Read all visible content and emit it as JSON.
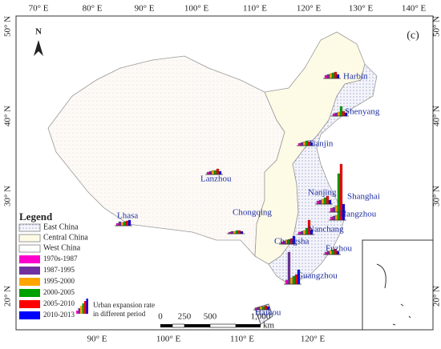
{
  "map": {
    "panel": "(c)",
    "north": "N",
    "lon_top": [
      "70° E",
      "80° E",
      "90° E",
      "100° E",
      "110° E",
      "120° E",
      "130° E",
      "140° E"
    ],
    "lon_bottom": [
      "90° E",
      "100° E",
      "110° E",
      "120° E"
    ],
    "lat_left": [
      "50° N",
      "40° N",
      "30° N",
      "20° N"
    ],
    "lat_right": [
      "50° N",
      "40° N",
      "30° N",
      "20° N"
    ],
    "legend": {
      "title": "Legend",
      "regions": [
        "East China",
        "Central China",
        "West China"
      ],
      "periods": [
        {
          "label": "1970s-1987",
          "color": "#ff00cc"
        },
        {
          "label": "1987-1995",
          "color": "#7030a0"
        },
        {
          "label": "1995-2000",
          "color": "#ffa500"
        },
        {
          "label": "2000-2005",
          "color": "#00a000"
        },
        {
          "label": "2005-2010",
          "color": "#ff0000"
        },
        {
          "label": "2010-2013",
          "color": "#0000ff"
        }
      ],
      "note": [
        "Urban expansion rate",
        "in different period"
      ]
    },
    "scale": {
      "labels": [
        "0",
        "250",
        "500",
        "1,000"
      ],
      "unit": "km"
    },
    "cities": [
      {
        "name": "Harbin",
        "values": [
          4,
          5,
          6,
          7,
          8,
          5
        ]
      },
      {
        "name": "Shenyang",
        "values": [
          3,
          4,
          5,
          12,
          6,
          4
        ]
      },
      {
        "name": "Tianjin",
        "values": [
          3,
          4,
          5,
          6,
          5,
          4
        ]
      },
      {
        "name": "Lanzhou",
        "values": [
          3,
          4,
          5,
          5,
          7,
          4
        ]
      },
      {
        "name": "Lhasa",
        "values": [
          3,
          5,
          4,
          5,
          6,
          7
        ]
      },
      {
        "name": "Chongqing",
        "values": [
          2,
          3,
          3,
          4,
          4,
          3
        ]
      },
      {
        "name": "Nanjing",
        "values": [
          4,
          5,
          6,
          8,
          10,
          5
        ]
      },
      {
        "name": "Shanghai",
        "values": [
          5,
          6,
          8,
          48,
          60,
          10
        ]
      },
      {
        "name": "Hangzhou",
        "values": [
          4,
          5,
          6,
          10,
          12,
          14
        ]
      },
      {
        "name": "Nanchang",
        "values": [
          3,
          4,
          5,
          8,
          18,
          6
        ]
      },
      {
        "name": "Changsha",
        "values": [
          3,
          4,
          5,
          6,
          7,
          10
        ]
      },
      {
        "name": "Fuzhou",
        "values": [
          3,
          4,
          5,
          6,
          7,
          4
        ]
      },
      {
        "name": "Guangzhou",
        "values": [
          5,
          40,
          8,
          10,
          12,
          18
        ]
      },
      {
        "name": "Haikou",
        "values": [
          2,
          3,
          4,
          4,
          5,
          4
        ]
      }
    ]
  }
}
